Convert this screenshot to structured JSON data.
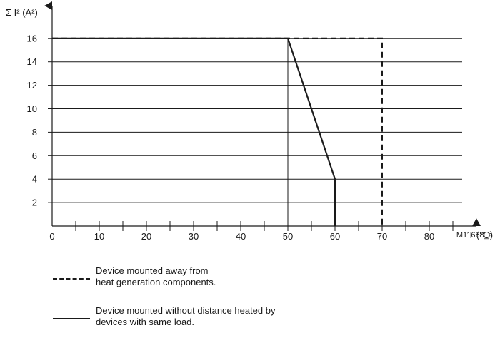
{
  "chart_data": {
    "type": "line",
    "ylabel": "Σ I² (A²)",
    "xlabel": "T (°C)",
    "figure_code": "M11658_a",
    "x_ticks": [
      0,
      10,
      20,
      30,
      40,
      50,
      60,
      70,
      80
    ],
    "y_ticks": [
      2,
      4,
      6,
      8,
      10,
      12,
      14,
      16
    ],
    "xlim": [
      0,
      90
    ],
    "ylim": [
      0,
      17.5
    ],
    "grid": "horizontal",
    "series": [
      {
        "style": "dashed",
        "points": [
          [
            0,
            16
          ],
          [
            70,
            16
          ],
          [
            70,
            0
          ]
        ]
      },
      {
        "style": "solid",
        "points": [
          [
            0,
            16
          ],
          [
            50,
            16
          ],
          [
            60,
            4
          ],
          [
            60,
            0
          ]
        ]
      }
    ],
    "vertical_lines": [
      50
    ],
    "legend": [
      {
        "style": "dashed",
        "lines": [
          "Device mounted away from",
          "heat generation components."
        ]
      },
      {
        "style": "solid",
        "lines": [
          "Device mounted without distance heated by",
          "devices with same load."
        ]
      }
    ]
  }
}
